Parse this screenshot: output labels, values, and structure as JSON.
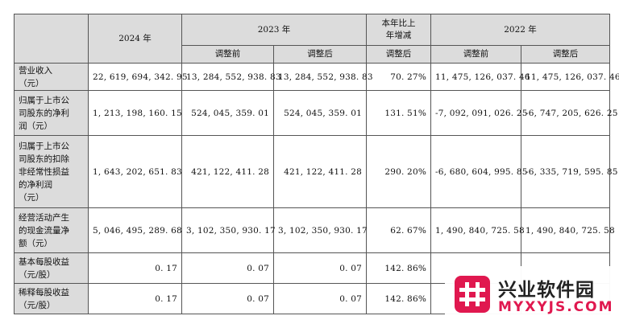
{
  "table": {
    "header": {
      "y2024": "2024 年",
      "y2023": "2023 年",
      "change": [
        "本年比上",
        "年增减"
      ],
      "y2022": "2022 年",
      "before": "调整前",
      "after": "调整后"
    },
    "rows": [
      {
        "label": [
          "营业收入",
          "（元）"
        ],
        "values": [
          "22, 619, 694, 342. 95",
          "13, 284, 552, 938. 83",
          "13, 284, 552, 938. 83",
          "70. 27%",
          "11, 475, 126, 037. 46",
          "11, 475, 126, 037. 46"
        ]
      },
      {
        "label": [
          "归属于上市公",
          "司股东的净利",
          "润（元）"
        ],
        "values": [
          "1, 213, 198, 160. 15",
          "524, 045, 359. 01",
          "524, 045, 359. 01",
          "131. 51%",
          "-7, 092, 091, 026. 25",
          "-6, 747, 205, 626. 25"
        ]
      },
      {
        "label": [
          "归属于上市公",
          "司股东的扣除",
          "非经常性损益",
          "的净利润",
          "（元）"
        ],
        "values": [
          "1, 643, 202, 651. 83",
          "421, 122, 411. 28",
          "421, 122, 411. 28",
          "290. 20%",
          "-6, 680, 604, 995. 85",
          "-6, 335, 719, 595. 85"
        ]
      },
      {
        "label": [
          "经营活动产生",
          "的现金流量净",
          "额（元）"
        ],
        "values": [
          "5, 046, 495, 289. 68",
          "3, 102, 350, 930. 17",
          "3, 102, 350, 930. 17",
          "62. 67%",
          "1, 490, 840, 725. 58",
          "1, 490, 840, 725. 58"
        ]
      },
      {
        "label": [
          "基本每股收益",
          "（元/股）"
        ],
        "values": [
          "0. 17",
          "0. 07",
          "0. 07",
          "142. 86%",
          "",
          ""
        ]
      },
      {
        "label": [
          "稀释每股收益",
          "（元/股）"
        ],
        "values": [
          "0. 17",
          "0. 07",
          "0. 07",
          "142. 86%",
          "",
          ""
        ]
      }
    ]
  },
  "watermark": {
    "icon": "hash-logo-icon",
    "text_cn": "兴业软件园",
    "text_en": "MYXYJS.COM",
    "accent_color": "#e0184f"
  }
}
